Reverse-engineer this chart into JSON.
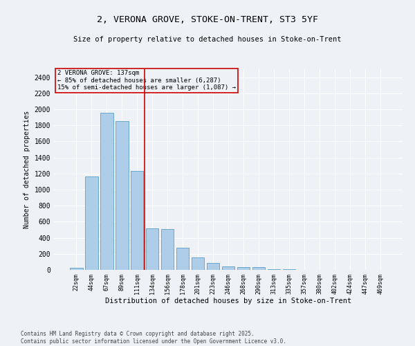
{
  "title": "2, VERONA GROVE, STOKE-ON-TRENT, ST3 5YF",
  "subtitle": "Size of property relative to detached houses in Stoke-on-Trent",
  "xlabel": "Distribution of detached houses by size in Stoke-on-Trent",
  "ylabel": "Number of detached properties",
  "categories": [
    "22sqm",
    "44sqm",
    "67sqm",
    "89sqm",
    "111sqm",
    "134sqm",
    "156sqm",
    "178sqm",
    "201sqm",
    "223sqm",
    "246sqm",
    "268sqm",
    "290sqm",
    "313sqm",
    "335sqm",
    "357sqm",
    "380sqm",
    "402sqm",
    "424sqm",
    "447sqm",
    "469sqm"
  ],
  "values": [
    25,
    1160,
    1960,
    1850,
    1230,
    520,
    510,
    275,
    155,
    85,
    45,
    35,
    35,
    10,
    5,
    3,
    2,
    1,
    1,
    1,
    1
  ],
  "bar_color": "#aecde8",
  "bar_edge_color": "#5a9fc8",
  "vline_index": 4.5,
  "vline_color": "#cc0000",
  "annotation_text": "2 VERONA GROVE: 137sqm\n← 85% of detached houses are smaller (6,287)\n15% of semi-detached houses are larger (1,087) →",
  "annotation_box_color": "#cc0000",
  "ylim": [
    0,
    2500
  ],
  "yticks": [
    0,
    200,
    400,
    600,
    800,
    1000,
    1200,
    1400,
    1600,
    1800,
    2000,
    2200,
    2400
  ],
  "bg_color": "#eef2f7",
  "grid_color": "#ffffff",
  "footer_line1": "Contains HM Land Registry data © Crown copyright and database right 2025.",
  "footer_line2": "Contains public sector information licensed under the Open Government Licence v3.0."
}
